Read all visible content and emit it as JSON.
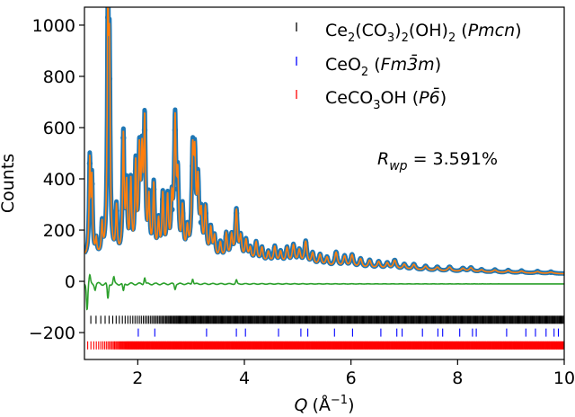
{
  "chart_data": {
    "type": "line",
    "xlabel_main": "Q",
    "xlabel_unit": "(Å",
    "xlabel_exp": "−1",
    "xlabel_close": ")",
    "ylabel": "Counts",
    "xlim": [
      1.0,
      10.0
    ],
    "ylim": [
      -305,
      1070
    ],
    "xticks": [
      2,
      4,
      6,
      8,
      10
    ],
    "yticks": [
      -200,
      0,
      200,
      400,
      600,
      800,
      1000
    ],
    "x_tick_labels": [
      "2",
      "4",
      "6",
      "8",
      "10"
    ],
    "y_tick_labels": [
      "−200",
      "0",
      "200",
      "400",
      "600",
      "800",
      "1000"
    ],
    "grid": false,
    "legend_position": "top-right",
    "legend": [
      {
        "parts": [
          "Ce",
          "2",
          "(CO",
          "3",
          ")",
          "2",
          "(OH)",
          "2",
          " (",
          "Pmcn",
          ")"
        ],
        "color": "#000000"
      },
      {
        "parts": [
          "CeO",
          "2",
          " (",
          "Fm3̄m",
          ")"
        ],
        "color": "#0000ff"
      },
      {
        "parts": [
          "CeCO",
          "3",
          "OH (",
          "P6̄",
          ")"
        ],
        "color": "#ff0000"
      }
    ],
    "annotation": {
      "R": "R",
      "sub": "wp",
      "rest": " = 3.591%"
    },
    "colors": {
      "observed": "#1f77b4",
      "calculated": "#ff7f0e",
      "difference": "#2ca02c",
      "phase1": "#000000",
      "phase2": "#0000ff",
      "phase3": "#ff0000"
    },
    "series": [
      {
        "role": "observed_and_calculated",
        "background": [
          [
            1.0,
            95
          ],
          [
            1.5,
            88
          ],
          [
            2.0,
            85
          ],
          [
            3.0,
            80
          ],
          [
            4.0,
            70
          ],
          [
            5.0,
            60
          ],
          [
            6.0,
            50
          ],
          [
            7.0,
            44
          ],
          [
            8.0,
            38
          ],
          [
            9.0,
            33
          ],
          [
            10.0,
            30
          ]
        ],
        "peaks": [
          [
            1.1,
            460
          ],
          [
            1.14,
            380
          ],
          [
            1.22,
            150
          ],
          [
            1.33,
            210
          ],
          [
            1.44,
            1030
          ],
          [
            1.47,
            790
          ],
          [
            1.6,
            275
          ],
          [
            1.73,
            560
          ],
          [
            1.79,
            350
          ],
          [
            1.87,
            370
          ],
          [
            1.96,
            430
          ],
          [
            2.03,
            470
          ],
          [
            2.08,
            440
          ],
          [
            2.13,
            590
          ],
          [
            2.21,
            300
          ],
          [
            2.3,
            360
          ],
          [
            2.39,
            215
          ],
          [
            2.47,
            320
          ],
          [
            2.56,
            305
          ],
          [
            2.64,
            280
          ],
          [
            2.7,
            590
          ],
          [
            2.75,
            360
          ],
          [
            2.84,
            265
          ],
          [
            2.93,
            180
          ],
          [
            3.03,
            450
          ],
          [
            3.07,
            420
          ],
          [
            3.13,
            350
          ],
          [
            3.19,
            230
          ],
          [
            3.27,
            265
          ],
          [
            3.37,
            190
          ],
          [
            3.44,
            160
          ],
          [
            3.55,
            140
          ],
          [
            3.66,
            175
          ],
          [
            3.76,
            165
          ],
          [
            3.85,
            265
          ],
          [
            3.93,
            160
          ],
          [
            4.03,
            150
          ],
          [
            4.11,
            120
          ],
          [
            4.22,
            145
          ],
          [
            4.33,
            125
          ],
          [
            4.45,
            110
          ],
          [
            4.57,
            130
          ],
          [
            4.68,
            110
          ],
          [
            4.8,
            125
          ],
          [
            4.92,
            135
          ],
          [
            5.03,
            115
          ],
          [
            5.15,
            150
          ],
          [
            5.28,
            105
          ],
          [
            5.42,
            100
          ],
          [
            5.55,
            90
          ],
          [
            5.72,
            110
          ],
          [
            5.88,
            95
          ],
          [
            6.02,
            100
          ],
          [
            6.18,
            85
          ],
          [
            6.35,
            80
          ],
          [
            6.52,
            75
          ],
          [
            6.68,
            70
          ],
          [
            6.82,
            80
          ],
          [
            7.0,
            65
          ],
          [
            7.18,
            65
          ],
          [
            7.4,
            58
          ],
          [
            7.62,
            55
          ],
          [
            7.85,
            55
          ],
          [
            8.1,
            50
          ],
          [
            8.25,
            52
          ],
          [
            8.45,
            45
          ],
          [
            8.7,
            44
          ],
          [
            8.95,
            42
          ],
          [
            9.2,
            40
          ],
          [
            9.5,
            38
          ],
          [
            9.75,
            36
          ]
        ]
      },
      {
        "role": "difference",
        "offset": -10,
        "features": [
          [
            1.05,
            -95
          ],
          [
            1.1,
            30
          ],
          [
            1.2,
            -20
          ],
          [
            1.44,
            -60
          ],
          [
            1.55,
            25
          ],
          [
            1.73,
            -30
          ],
          [
            2.13,
            25
          ],
          [
            2.7,
            -20
          ],
          [
            3.03,
            20
          ],
          [
            3.85,
            15
          ]
        ]
      }
    ],
    "tick_marks": {
      "phase1_y": -150,
      "phase2_y": -200,
      "phase3_y": -250,
      "phase2_positions": [
        2.01,
        2.32,
        3.29,
        3.85,
        4.02,
        4.64,
        5.06,
        5.19,
        5.69,
        6.03,
        6.56,
        6.86,
        6.96,
        7.34,
        7.63,
        7.72,
        8.04,
        8.28,
        8.35,
        8.92,
        9.28,
        9.46,
        9.66,
        9.81,
        9.89
      ]
    }
  }
}
